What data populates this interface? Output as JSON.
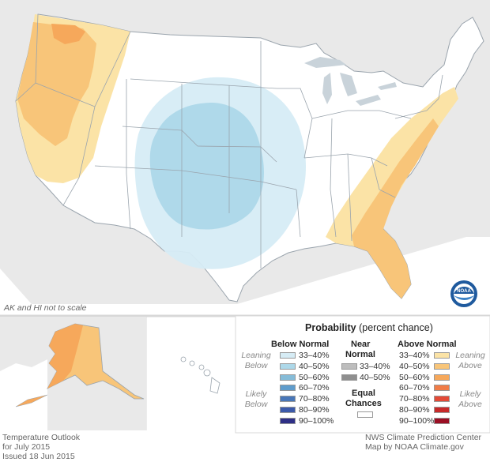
{
  "title": {
    "probability": "Probability",
    "unit": "(percent chance)"
  },
  "note_scale": "AK and HI not to scale",
  "legend": {
    "below_normal": {
      "heading": "Below Normal",
      "leaning": "Leaning Below",
      "likely": "Likely Below",
      "ranges": [
        "33–40%",
        "40–50%",
        "50–60%",
        "60–70%",
        "70–80%",
        "80–90%",
        "90–100%"
      ],
      "colors": [
        "#d6ecf5",
        "#add8e9",
        "#86bcd8",
        "#5f9ccc",
        "#4977b8",
        "#3c5aaa",
        "#2e2f86"
      ]
    },
    "near_normal": {
      "heading_line1": "Near",
      "heading_line2": "Normal",
      "ranges": [
        "33–40%",
        "40–50%"
      ],
      "colors": [
        "#bdbdbd",
        "#8f8f8f"
      ]
    },
    "equal_chances": {
      "line1": "Equal",
      "line2": "Chances",
      "color": "#ffffff"
    },
    "above_normal": {
      "heading": "Above Normal",
      "leaning": "Leaning Above",
      "likely": "Likely Above",
      "ranges": [
        "33–40%",
        "40–50%",
        "50–60%",
        "60–70%",
        "70–80%",
        "80–90%",
        "90–100%"
      ],
      "colors": [
        "#fbe3a6",
        "#f8c579",
        "#f6a85b",
        "#f07c47",
        "#e34a37",
        "#c72a2a",
        "#9b0f24"
      ]
    }
  },
  "footer_left": [
    "Temperature Outlook",
    "for July 2015",
    "Issued 18 Jun 2015"
  ],
  "footer_right": [
    "NWS Climate Prediction Center",
    "Map by NOAA Climate.gov"
  ],
  "logo_text": "NOAA",
  "map_colors": {
    "land": "#ffffff",
    "ocean": "#ffffff",
    "border": "#9aa4ad",
    "neighbors": "#e8e8e8",
    "lakes": "#c9d3da"
  }
}
